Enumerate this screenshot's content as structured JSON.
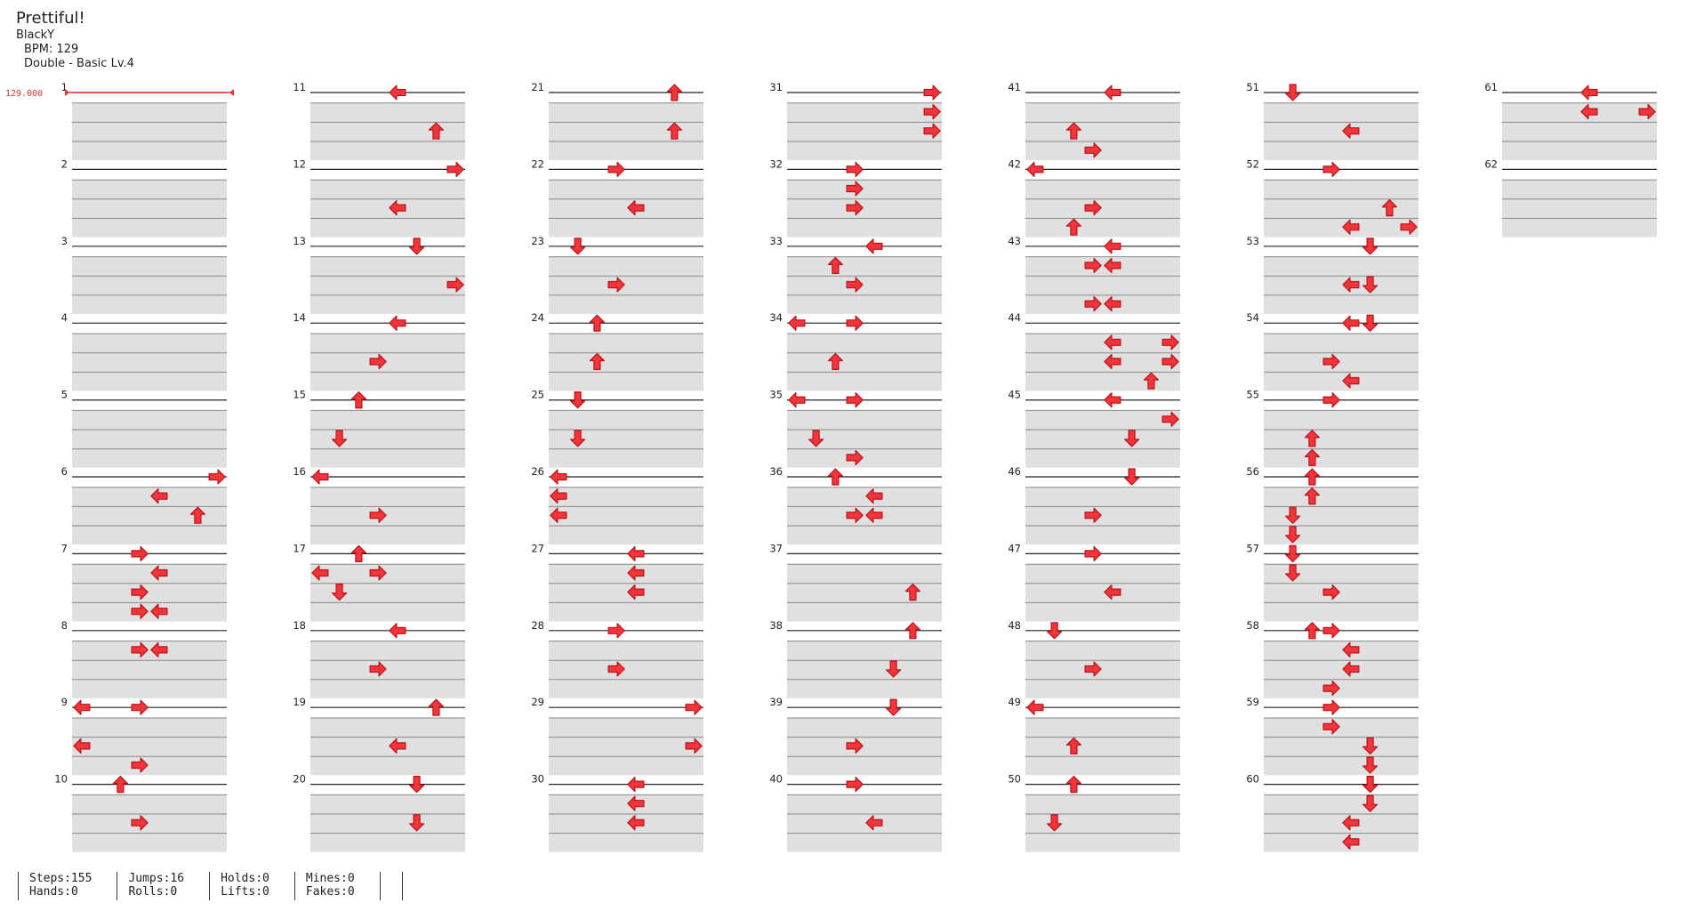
{
  "song": {
    "title": "Prettiful!",
    "artist": "BlackY",
    "bpm_text": "BPM: 129",
    "difficulty_text": "Double - Basic  Lv.4"
  },
  "bpm_marker": {
    "label": "129.000"
  },
  "layout": {
    "columns": 7,
    "measures_per_column": 10,
    "total_measures": 62,
    "lanes": 8,
    "rows_per_measure": 4
  },
  "colors": {
    "arrow": "#f2353b",
    "arrow_outline": "#b8141a",
    "band": "#e0e0e0",
    "band_line": "#888888",
    "measure_line": "#222222",
    "bpm_marker": "#e63333"
  },
  "note_icon_names": {
    "left": "left-arrow-icon",
    "down": "down-arrow-icon",
    "up": "up-arrow-icon",
    "right": "right-arrow-icon"
  },
  "notes": {
    "6": [
      [
        0,
        [
          7
        ]
      ],
      [
        1,
        [
          4
        ]
      ],
      [
        2,
        [
          6
        ]
      ]
    ],
    "7": [
      [
        0,
        [
          3
        ]
      ],
      [
        1,
        [
          4
        ]
      ],
      [
        2,
        [
          3
        ]
      ],
      [
        3,
        [
          3,
          4
        ]
      ]
    ],
    "8": [
      [
        1,
        [
          3,
          4
        ]
      ]
    ],
    "9": [
      [
        0,
        [
          0,
          3
        ]
      ],
      [
        2,
        [
          0
        ]
      ],
      [
        3,
        [
          3
        ]
      ]
    ],
    "10": [
      [
        0,
        [
          2
        ]
      ],
      [
        2,
        [
          3
        ]
      ]
    ],
    "11": [
      [
        0,
        [
          4
        ]
      ],
      [
        2,
        [
          6
        ]
      ]
    ],
    "12": [
      [
        0,
        [
          7
        ]
      ],
      [
        2,
        [
          4
        ]
      ]
    ],
    "13": [
      [
        0,
        [
          5
        ]
      ],
      [
        2,
        [
          7
        ]
      ]
    ],
    "14": [
      [
        0,
        [
          4
        ]
      ],
      [
        2,
        [
          3
        ]
      ]
    ],
    "15": [
      [
        0,
        [
          2
        ]
      ],
      [
        2,
        [
          1
        ]
      ]
    ],
    "16": [
      [
        0,
        [
          0
        ]
      ],
      [
        2,
        [
          3
        ]
      ]
    ],
    "17": [
      [
        0,
        [
          2
        ]
      ],
      [
        1,
        [
          0,
          3
        ]
      ],
      [
        2,
        [
          1
        ]
      ]
    ],
    "18": [
      [
        0,
        [
          4
        ]
      ],
      [
        2,
        [
          3
        ]
      ]
    ],
    "19": [
      [
        0,
        [
          6
        ]
      ],
      [
        2,
        [
          4
        ]
      ]
    ],
    "20": [
      [
        0,
        [
          5
        ]
      ],
      [
        2,
        [
          5
        ]
      ]
    ],
    "21": [
      [
        0,
        [
          6
        ]
      ],
      [
        2,
        [
          6
        ]
      ]
    ],
    "22": [
      [
        0,
        [
          3
        ]
      ],
      [
        2,
        [
          4
        ]
      ]
    ],
    "23": [
      [
        0,
        [
          1
        ]
      ],
      [
        2,
        [
          3
        ]
      ]
    ],
    "24": [
      [
        0,
        [
          2
        ]
      ],
      [
        2,
        [
          2
        ]
      ]
    ],
    "25": [
      [
        0,
        [
          1
        ]
      ],
      [
        2,
        [
          1
        ]
      ]
    ],
    "26": [
      [
        0,
        [
          0
        ]
      ],
      [
        1,
        [
          0
        ]
      ],
      [
        2,
        [
          0
        ]
      ]
    ],
    "27": [
      [
        0,
        [
          4
        ]
      ],
      [
        1,
        [
          4
        ]
      ],
      [
        2,
        [
          4
        ]
      ]
    ],
    "28": [
      [
        0,
        [
          3
        ]
      ],
      [
        2,
        [
          3
        ]
      ]
    ],
    "29": [
      [
        0,
        [
          7
        ]
      ],
      [
        2,
        [
          7
        ]
      ]
    ],
    "30": [
      [
        0,
        [
          4
        ]
      ],
      [
        1,
        [
          4
        ]
      ],
      [
        2,
        [
          4
        ]
      ]
    ],
    "31": [
      [
        0,
        [
          7
        ]
      ],
      [
        1,
        [
          7
        ]
      ],
      [
        2,
        [
          7
        ]
      ]
    ],
    "32": [
      [
        0,
        [
          3
        ]
      ],
      [
        1,
        [
          3
        ]
      ],
      [
        2,
        [
          3
        ]
      ]
    ],
    "33": [
      [
        0,
        [
          4
        ]
      ],
      [
        1,
        [
          2
        ]
      ],
      [
        2,
        [
          3
        ]
      ]
    ],
    "34": [
      [
        0,
        [
          0,
          3
        ]
      ],
      [
        2,
        [
          2
        ]
      ]
    ],
    "35": [
      [
        0,
        [
          0,
          3
        ]
      ],
      [
        2,
        [
          1
        ]
      ],
      [
        3,
        [
          3
        ]
      ]
    ],
    "36": [
      [
        0,
        [
          2
        ]
      ],
      [
        1,
        [
          4
        ]
      ],
      [
        2,
        [
          3,
          4
        ]
      ]
    ],
    "37": [
      [
        2,
        [
          6
        ]
      ]
    ],
    "38": [
      [
        0,
        [
          6
        ]
      ],
      [
        2,
        [
          5
        ]
      ]
    ],
    "39": [
      [
        0,
        [
          5
        ]
      ],
      [
        2,
        [
          3
        ]
      ]
    ],
    "40": [
      [
        0,
        [
          3
        ]
      ],
      [
        2,
        [
          4
        ]
      ]
    ],
    "41": [
      [
        0,
        [
          4
        ]
      ],
      [
        2,
        [
          2
        ]
      ],
      [
        3,
        [
          3
        ]
      ]
    ],
    "42": [
      [
        0,
        [
          0
        ]
      ],
      [
        2,
        [
          3
        ]
      ],
      [
        3,
        [
          2
        ]
      ]
    ],
    "43": [
      [
        0,
        [
          4
        ]
      ],
      [
        1,
        [
          3,
          4
        ]
      ],
      [
        3,
        [
          3,
          4
        ]
      ]
    ],
    "44": [
      [
        1,
        [
          4,
          7
        ]
      ],
      [
        2,
        [
          4,
          7
        ]
      ],
      [
        3,
        [
          6
        ]
      ]
    ],
    "45": [
      [
        0,
        [
          4
        ]
      ],
      [
        1,
        [
          7
        ]
      ],
      [
        2,
        [
          5
        ]
      ]
    ],
    "46": [
      [
        0,
        [
          5
        ]
      ],
      [
        2,
        [
          3
        ]
      ]
    ],
    "47": [
      [
        0,
        [
          3
        ]
      ],
      [
        2,
        [
          4
        ]
      ]
    ],
    "48": [
      [
        0,
        [
          1
        ]
      ],
      [
        2,
        [
          3
        ]
      ]
    ],
    "49": [
      [
        0,
        [
          0
        ]
      ],
      [
        2,
        [
          2
        ]
      ]
    ],
    "50": [
      [
        0,
        [
          2
        ]
      ],
      [
        2,
        [
          1
        ]
      ]
    ],
    "51": [
      [
        0,
        [
          1
        ]
      ],
      [
        2,
        [
          4
        ]
      ]
    ],
    "52": [
      [
        0,
        [
          3
        ]
      ],
      [
        2,
        [
          6
        ]
      ],
      [
        3,
        [
          4,
          7
        ]
      ]
    ],
    "53": [
      [
        0,
        [
          5
        ]
      ],
      [
        2,
        [
          4,
          5
        ]
      ]
    ],
    "54": [
      [
        0,
        [
          4,
          5
        ]
      ],
      [
        2,
        [
          3
        ]
      ],
      [
        3,
        [
          4
        ]
      ]
    ],
    "55": [
      [
        0,
        [
          3
        ]
      ],
      [
        2,
        [
          2
        ]
      ],
      [
        3,
        [
          2
        ]
      ]
    ],
    "56": [
      [
        0,
        [
          2
        ]
      ],
      [
        1,
        [
          2
        ]
      ],
      [
        2,
        [
          1
        ]
      ],
      [
        3,
        [
          1
        ]
      ]
    ],
    "57": [
      [
        0,
        [
          1
        ]
      ],
      [
        1,
        [
          1
        ]
      ],
      [
        2,
        [
          3
        ]
      ]
    ],
    "58": [
      [
        0,
        [
          2,
          3
        ]
      ],
      [
        1,
        [
          4
        ]
      ],
      [
        2,
        [
          4
        ]
      ],
      [
        3,
        [
          3
        ]
      ]
    ],
    "59": [
      [
        0,
        [
          3
        ]
      ],
      [
        1,
        [
          3
        ]
      ],
      [
        2,
        [
          5
        ]
      ],
      [
        3,
        [
          5
        ]
      ]
    ],
    "60": [
      [
        0,
        [
          5
        ]
      ],
      [
        1,
        [
          5
        ]
      ],
      [
        2,
        [
          4
        ]
      ],
      [
        3,
        [
          4
        ]
      ]
    ],
    "61": [
      [
        0,
        [
          4
        ]
      ],
      [
        1,
        [
          4,
          7
        ]
      ]
    ]
  },
  "stats": [
    [
      "Steps:155",
      "Hands:0"
    ],
    [
      "Jumps:16",
      "Rolls:0"
    ],
    [
      "Holds:0",
      "Lifts:0"
    ],
    [
      "Mines:0",
      "Fakes:0"
    ]
  ]
}
